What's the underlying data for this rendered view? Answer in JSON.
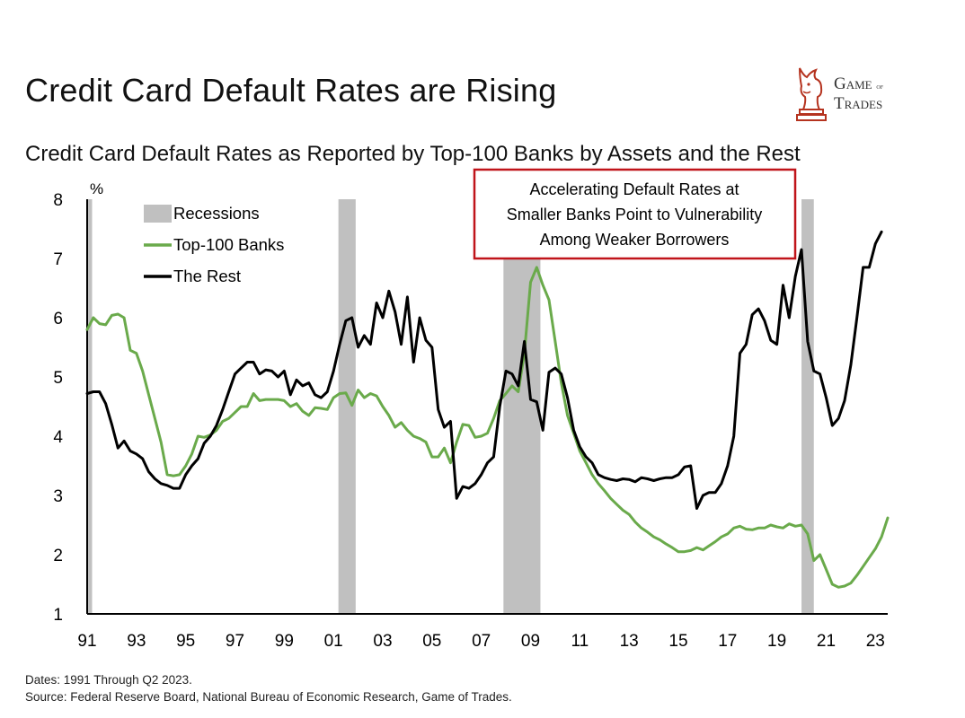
{
  "header": {
    "title": "Credit Card Default Rates are Rising",
    "subtitle": "Credit Card Default Rates as Reported by Top-100 Banks by Assets and the Rest"
  },
  "logo": {
    "line1": "Game",
    "line1_small": "of",
    "line2": "Trades",
    "icon": "bull-chess-knight-icon"
  },
  "callout": {
    "lines": [
      "Accelerating Default Rates at",
      "Smaller Banks Point to Vulnerability",
      "Among Weaker Borrowers"
    ],
    "border_color": "#c0141a"
  },
  "footer": {
    "dates": "Dates: 1991 Through Q2 2023.",
    "source": "Source: Federal Reserve Board, National Bureau of Economic Research, Game of Trades."
  },
  "chart_data": {
    "type": "line",
    "ylabel": "%",
    "ylim": [
      1,
      8
    ],
    "yticks": [
      1,
      2,
      3,
      4,
      5,
      6,
      7,
      8
    ],
    "xlim": [
      1991,
      2023.5
    ],
    "xtick_values": [
      1991,
      1993,
      1995,
      1997,
      1999,
      2001,
      2003,
      2005,
      2007,
      2009,
      2011,
      2013,
      2015,
      2017,
      2019,
      2021,
      2023
    ],
    "xtick_labels": [
      "91",
      "93",
      "95",
      "97",
      "99",
      "01",
      "03",
      "05",
      "07",
      "09",
      "11",
      "13",
      "15",
      "17",
      "19",
      "21",
      "23"
    ],
    "legend": [
      {
        "label": "Recessions",
        "color": "#c0c0c0",
        "kind": "band"
      },
      {
        "label": "Top-100 Banks",
        "color": "#6aaa4b",
        "kind": "line"
      },
      {
        "label": "The Rest",
        "color": "#000000",
        "kind": "line"
      }
    ],
    "legend_position": "top-left",
    "recessions": [
      {
        "start": 1991.0,
        "end": 1991.2
      },
      {
        "start": 2001.2,
        "end": 2001.9
      },
      {
        "start": 2007.9,
        "end": 2009.4
      },
      {
        "start": 2020.0,
        "end": 2020.5
      }
    ],
    "series": [
      {
        "name": "Top-100 Banks",
        "color": "#6aaa4b",
        "points": [
          [
            1991.0,
            5.8
          ],
          [
            1991.25,
            6.0
          ],
          [
            1991.5,
            5.9
          ],
          [
            1991.75,
            5.88
          ],
          [
            1992.0,
            6.04
          ],
          [
            1992.25,
            6.06
          ],
          [
            1992.5,
            6.0
          ],
          [
            1992.75,
            5.45
          ],
          [
            1993.0,
            5.4
          ],
          [
            1993.25,
            5.1
          ],
          [
            1993.5,
            4.7
          ],
          [
            1993.75,
            4.3
          ],
          [
            1994.0,
            3.9
          ],
          [
            1994.25,
            3.35
          ],
          [
            1994.5,
            3.33
          ],
          [
            1994.75,
            3.35
          ],
          [
            1995.0,
            3.5
          ],
          [
            1995.25,
            3.7
          ],
          [
            1995.5,
            4.0
          ],
          [
            1995.75,
            3.98
          ],
          [
            1996.0,
            4.02
          ],
          [
            1996.25,
            4.1
          ],
          [
            1996.5,
            4.25
          ],
          [
            1996.75,
            4.3
          ],
          [
            1997.0,
            4.4
          ],
          [
            1997.25,
            4.5
          ],
          [
            1997.5,
            4.5
          ],
          [
            1997.75,
            4.72
          ],
          [
            1998.0,
            4.6
          ],
          [
            1998.25,
            4.62
          ],
          [
            1998.5,
            4.62
          ],
          [
            1998.75,
            4.62
          ],
          [
            1999.0,
            4.6
          ],
          [
            1999.25,
            4.5
          ],
          [
            1999.5,
            4.55
          ],
          [
            1999.75,
            4.42
          ],
          [
            2000.0,
            4.35
          ],
          [
            2000.25,
            4.48
          ],
          [
            2000.5,
            4.47
          ],
          [
            2000.75,
            4.45
          ],
          [
            2001.0,
            4.65
          ],
          [
            2001.25,
            4.72
          ],
          [
            2001.5,
            4.73
          ],
          [
            2001.75,
            4.52
          ],
          [
            2002.0,
            4.78
          ],
          [
            2002.25,
            4.65
          ],
          [
            2002.5,
            4.72
          ],
          [
            2002.75,
            4.68
          ],
          [
            2003.0,
            4.5
          ],
          [
            2003.25,
            4.35
          ],
          [
            2003.5,
            4.15
          ],
          [
            2003.75,
            4.23
          ],
          [
            2004.0,
            4.1
          ],
          [
            2004.25,
            4.0
          ],
          [
            2004.5,
            3.96
          ],
          [
            2004.75,
            3.9
          ],
          [
            2005.0,
            3.65
          ],
          [
            2005.25,
            3.65
          ],
          [
            2005.5,
            3.8
          ],
          [
            2005.75,
            3.55
          ],
          [
            2006.0,
            3.9
          ],
          [
            2006.25,
            4.2
          ],
          [
            2006.5,
            4.18
          ],
          [
            2006.75,
            3.98
          ],
          [
            2007.0,
            4.0
          ],
          [
            2007.25,
            4.05
          ],
          [
            2007.5,
            4.3
          ],
          [
            2007.75,
            4.6
          ],
          [
            2008.0,
            4.72
          ],
          [
            2008.25,
            4.85
          ],
          [
            2008.5,
            4.75
          ],
          [
            2008.75,
            5.4
          ],
          [
            2009.0,
            6.6
          ],
          [
            2009.25,
            6.85
          ],
          [
            2009.5,
            6.55
          ],
          [
            2009.75,
            6.3
          ],
          [
            2010.0,
            5.6
          ],
          [
            2010.25,
            4.9
          ],
          [
            2010.5,
            4.35
          ],
          [
            2010.75,
            4.05
          ],
          [
            2011.0,
            3.75
          ],
          [
            2011.25,
            3.55
          ],
          [
            2011.5,
            3.35
          ],
          [
            2011.75,
            3.2
          ],
          [
            2012.0,
            3.08
          ],
          [
            2012.25,
            2.95
          ],
          [
            2012.5,
            2.85
          ],
          [
            2012.75,
            2.75
          ],
          [
            2013.0,
            2.68
          ],
          [
            2013.25,
            2.55
          ],
          [
            2013.5,
            2.45
          ],
          [
            2013.75,
            2.38
          ],
          [
            2014.0,
            2.3
          ],
          [
            2014.25,
            2.25
          ],
          [
            2014.5,
            2.18
          ],
          [
            2014.75,
            2.12
          ],
          [
            2015.0,
            2.05
          ],
          [
            2015.25,
            2.05
          ],
          [
            2015.5,
            2.07
          ],
          [
            2015.75,
            2.12
          ],
          [
            2016.0,
            2.08
          ],
          [
            2016.25,
            2.15
          ],
          [
            2016.5,
            2.22
          ],
          [
            2016.75,
            2.3
          ],
          [
            2017.0,
            2.35
          ],
          [
            2017.25,
            2.45
          ],
          [
            2017.5,
            2.48
          ],
          [
            2017.75,
            2.43
          ],
          [
            2018.0,
            2.42
          ],
          [
            2018.25,
            2.45
          ],
          [
            2018.5,
            2.45
          ],
          [
            2018.75,
            2.5
          ],
          [
            2019.0,
            2.47
          ],
          [
            2019.25,
            2.45
          ],
          [
            2019.5,
            2.52
          ],
          [
            2019.75,
            2.48
          ],
          [
            2020.0,
            2.5
          ],
          [
            2020.25,
            2.35
          ],
          [
            2020.5,
            1.9
          ],
          [
            2020.75,
            2.0
          ],
          [
            2021.0,
            1.75
          ],
          [
            2021.25,
            1.5
          ],
          [
            2021.5,
            1.45
          ],
          [
            2021.75,
            1.47
          ],
          [
            2022.0,
            1.52
          ],
          [
            2022.25,
            1.65
          ],
          [
            2022.5,
            1.8
          ],
          [
            2022.75,
            1.95
          ],
          [
            2023.0,
            2.1
          ],
          [
            2023.25,
            2.3
          ],
          [
            2023.5,
            2.62
          ]
        ]
      },
      {
        "name": "The Rest",
        "color": "#000000",
        "points": [
          [
            1991.0,
            4.72
          ],
          [
            1991.25,
            4.75
          ],
          [
            1991.5,
            4.75
          ],
          [
            1991.75,
            4.55
          ],
          [
            1992.0,
            4.2
          ],
          [
            1992.25,
            3.8
          ],
          [
            1992.5,
            3.92
          ],
          [
            1992.75,
            3.75
          ],
          [
            1993.0,
            3.7
          ],
          [
            1993.25,
            3.62
          ],
          [
            1993.5,
            3.4
          ],
          [
            1993.75,
            3.28
          ],
          [
            1994.0,
            3.2
          ],
          [
            1994.25,
            3.17
          ],
          [
            1994.5,
            3.12
          ],
          [
            1994.75,
            3.12
          ],
          [
            1995.0,
            3.35
          ],
          [
            1995.25,
            3.5
          ],
          [
            1995.5,
            3.62
          ],
          [
            1995.75,
            3.88
          ],
          [
            1996.0,
            4.0
          ],
          [
            1996.25,
            4.18
          ],
          [
            1996.5,
            4.45
          ],
          [
            1996.75,
            4.75
          ],
          [
            1997.0,
            5.05
          ],
          [
            1997.25,
            5.15
          ],
          [
            1997.5,
            5.25
          ],
          [
            1997.75,
            5.25
          ],
          [
            1998.0,
            5.05
          ],
          [
            1998.25,
            5.12
          ],
          [
            1998.5,
            5.1
          ],
          [
            1998.75,
            5.0
          ],
          [
            1999.0,
            5.1
          ],
          [
            1999.25,
            4.7
          ],
          [
            1999.5,
            4.95
          ],
          [
            1999.75,
            4.85
          ],
          [
            2000.0,
            4.9
          ],
          [
            2000.25,
            4.7
          ],
          [
            2000.5,
            4.65
          ],
          [
            2000.75,
            4.75
          ],
          [
            2001.0,
            5.1
          ],
          [
            2001.25,
            5.55
          ],
          [
            2001.5,
            5.95
          ],
          [
            2001.75,
            6.0
          ],
          [
            2002.0,
            5.5
          ],
          [
            2002.25,
            5.7
          ],
          [
            2002.5,
            5.55
          ],
          [
            2002.75,
            6.25
          ],
          [
            2003.0,
            6.0
          ],
          [
            2003.25,
            6.45
          ],
          [
            2003.5,
            6.1
          ],
          [
            2003.75,
            5.55
          ],
          [
            2004.0,
            6.35
          ],
          [
            2004.25,
            5.25
          ],
          [
            2004.5,
            6.0
          ],
          [
            2004.75,
            5.62
          ],
          [
            2005.0,
            5.5
          ],
          [
            2005.25,
            4.45
          ],
          [
            2005.5,
            4.15
          ],
          [
            2005.75,
            4.25
          ],
          [
            2006.0,
            2.95
          ],
          [
            2006.25,
            3.15
          ],
          [
            2006.5,
            3.12
          ],
          [
            2006.75,
            3.2
          ],
          [
            2007.0,
            3.35
          ],
          [
            2007.25,
            3.55
          ],
          [
            2007.5,
            3.65
          ],
          [
            2007.75,
            4.5
          ],
          [
            2008.0,
            5.1
          ],
          [
            2008.25,
            5.05
          ],
          [
            2008.5,
            4.85
          ],
          [
            2008.75,
            5.6
          ],
          [
            2009.0,
            4.62
          ],
          [
            2009.25,
            4.58
          ],
          [
            2009.5,
            4.1
          ],
          [
            2009.75,
            5.08
          ],
          [
            2010.0,
            5.15
          ],
          [
            2010.25,
            5.05
          ],
          [
            2010.5,
            4.65
          ],
          [
            2010.75,
            4.1
          ],
          [
            2011.0,
            3.82
          ],
          [
            2011.25,
            3.65
          ],
          [
            2011.5,
            3.55
          ],
          [
            2011.75,
            3.35
          ],
          [
            2012.0,
            3.3
          ],
          [
            2012.25,
            3.27
          ],
          [
            2012.5,
            3.25
          ],
          [
            2012.75,
            3.28
          ],
          [
            2013.0,
            3.27
          ],
          [
            2013.25,
            3.23
          ],
          [
            2013.5,
            3.3
          ],
          [
            2013.75,
            3.28
          ],
          [
            2014.0,
            3.25
          ],
          [
            2014.25,
            3.28
          ],
          [
            2014.5,
            3.3
          ],
          [
            2014.75,
            3.3
          ],
          [
            2015.0,
            3.35
          ],
          [
            2015.25,
            3.48
          ],
          [
            2015.5,
            3.5
          ],
          [
            2015.75,
            2.78
          ],
          [
            2016.0,
            3.0
          ],
          [
            2016.25,
            3.05
          ],
          [
            2016.5,
            3.05
          ],
          [
            2016.75,
            3.2
          ],
          [
            2017.0,
            3.5
          ],
          [
            2017.25,
            4.0
          ],
          [
            2017.5,
            5.4
          ],
          [
            2017.75,
            5.55
          ],
          [
            2018.0,
            6.05
          ],
          [
            2018.25,
            6.15
          ],
          [
            2018.5,
            5.95
          ],
          [
            2018.75,
            5.62
          ],
          [
            2019.0,
            5.55
          ],
          [
            2019.25,
            6.55
          ],
          [
            2019.5,
            6.0
          ],
          [
            2019.75,
            6.7
          ],
          [
            2020.0,
            7.15
          ],
          [
            2020.25,
            5.6
          ],
          [
            2020.5,
            5.1
          ],
          [
            2020.75,
            5.05
          ],
          [
            2021.0,
            4.65
          ],
          [
            2021.25,
            4.18
          ],
          [
            2021.5,
            4.3
          ],
          [
            2021.75,
            4.6
          ],
          [
            2022.0,
            5.2
          ],
          [
            2022.25,
            6.0
          ],
          [
            2022.5,
            6.85
          ],
          [
            2022.75,
            6.85
          ],
          [
            2023.0,
            7.25
          ],
          [
            2023.25,
            7.45
          ]
        ]
      }
    ]
  }
}
